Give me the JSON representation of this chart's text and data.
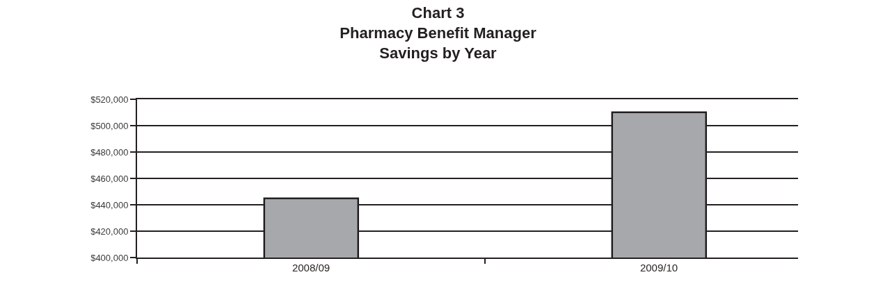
{
  "chart_data": {
    "type": "bar",
    "title": "Chart 3\nPharmacy Benefit Manager\nSavings by Year",
    "categories": [
      "2008/09",
      "2009/10"
    ],
    "values": [
      445000,
      510000
    ],
    "color": "#a7a8ab",
    "ylim": [
      400000,
      520000
    ],
    "yticks": [
      {
        "value": 400000,
        "label": "$400,000"
      },
      {
        "value": 420000,
        "label": "$420,000"
      },
      {
        "value": 440000,
        "label": "$440,000"
      },
      {
        "value": 460000,
        "label": "$460,000"
      },
      {
        "value": 480000,
        "label": "$480,000"
      },
      {
        "value": 500000,
        "label": "$500,000"
      },
      {
        "value": 520000,
        "label": "$520,000"
      }
    ],
    "grid": "y"
  }
}
